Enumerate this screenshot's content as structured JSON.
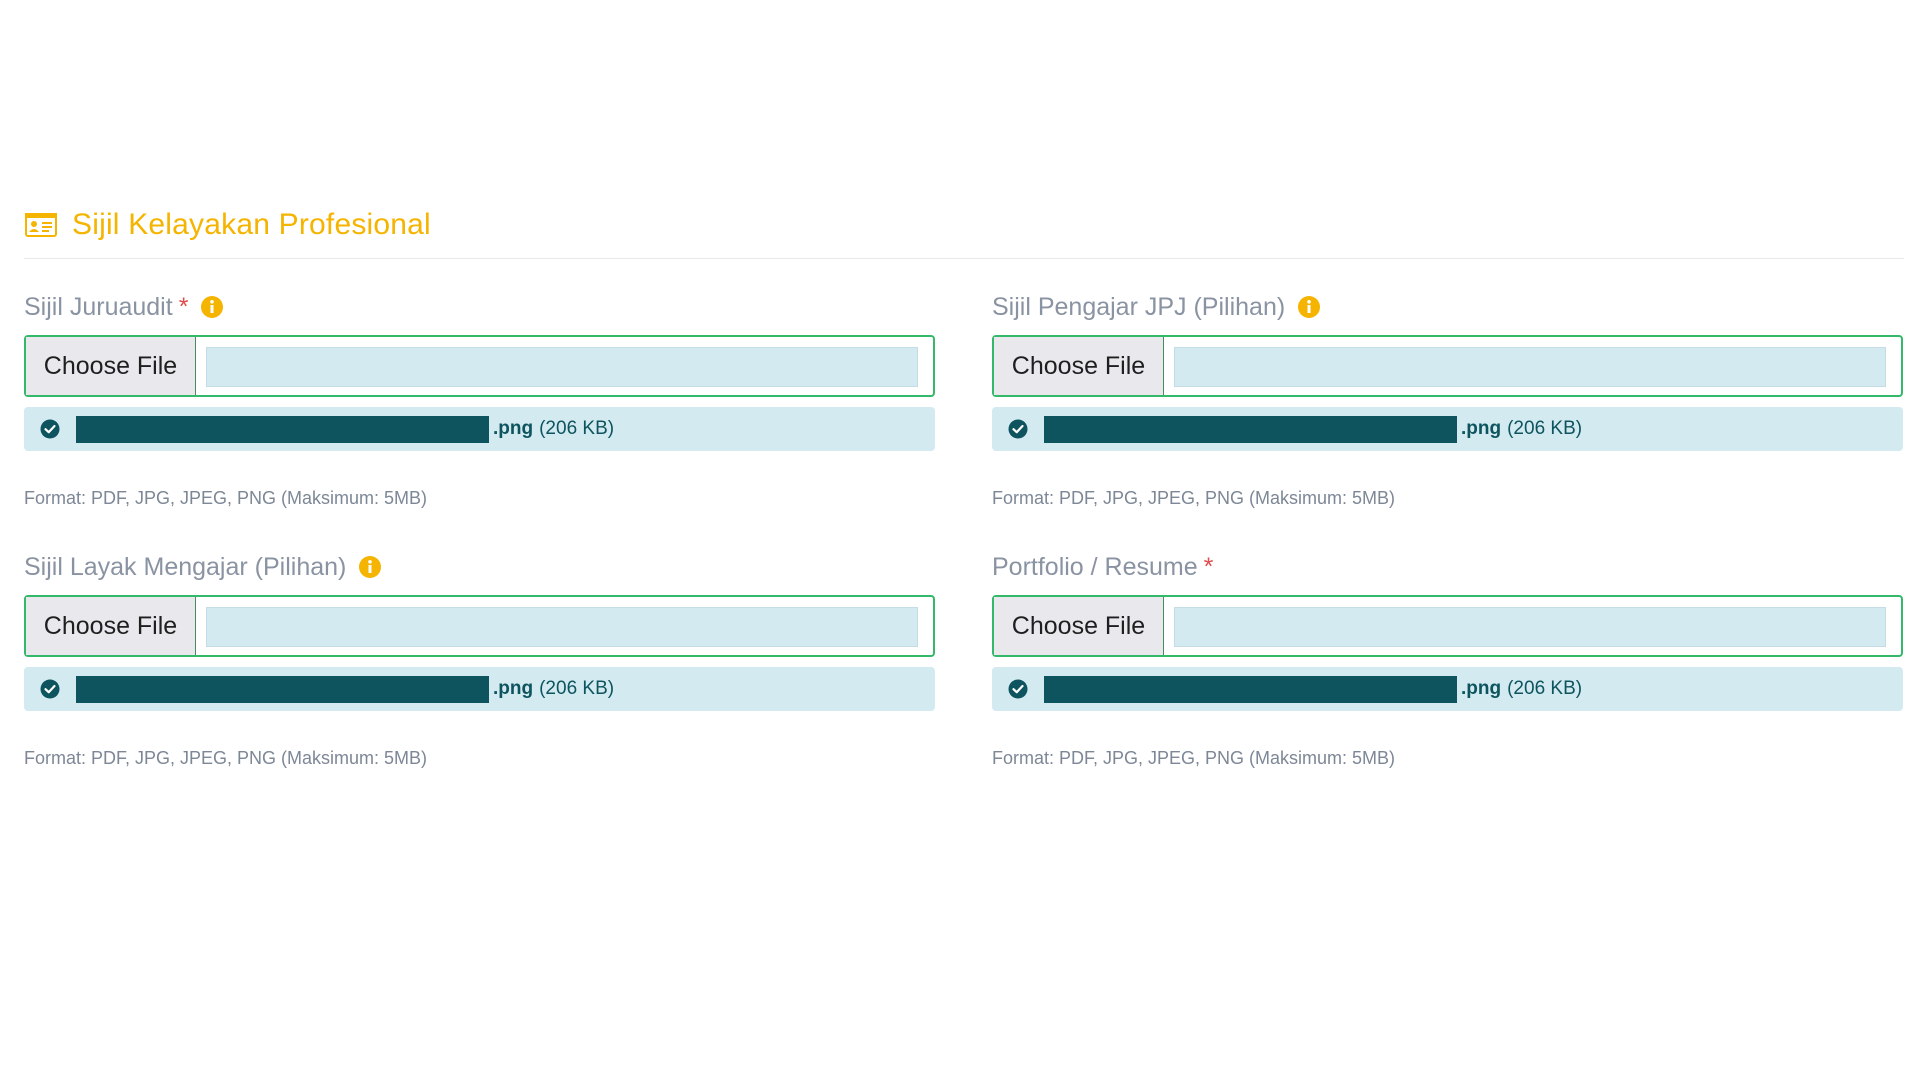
{
  "section": {
    "title": "Sijil Kelayakan Profesional",
    "icon": "id-card-icon",
    "accent_color": "#f5b400"
  },
  "fields": [
    {
      "label": "Sijil Juruaudit",
      "required_mark": "*",
      "info_icon": "info-icon",
      "button_label": "Choose File",
      "file_ext": ".png",
      "file_size": "(206 KB)",
      "hint": "Format: PDF, JPG, JPEG, PNG (Maksimum: 5MB)"
    },
    {
      "label": "Sijil Pengajar JPJ (Pilihan)",
      "required_mark": "",
      "info_icon": "info-icon",
      "button_label": "Choose File",
      "file_ext": ".png",
      "file_size": "(206 KB)",
      "hint": "Format: PDF, JPG, JPEG, PNG (Maksimum: 5MB)"
    },
    {
      "label": "Sijil Layak Mengajar (Pilihan)",
      "required_mark": "",
      "info_icon": "info-icon",
      "button_label": "Choose File",
      "file_ext": ".png",
      "file_size": "(206 KB)",
      "hint": "Format: PDF, JPG, JPEG, PNG (Maksimum: 5MB)"
    },
    {
      "label": "Portfolio / Resume",
      "required_mark": "*",
      "info_icon": "",
      "button_label": "Choose File",
      "file_ext": ".png",
      "file_size": "(206 KB)",
      "hint": "Format: PDF, JPG, JPEG, PNG (Maksimum: 5MB)"
    }
  ],
  "colors": {
    "border_success": "#34b86a",
    "uploaded_bg": "#d2eaf0",
    "uploaded_text": "#0e545f",
    "required": "#e24c4c",
    "label": "#8a93a2"
  }
}
